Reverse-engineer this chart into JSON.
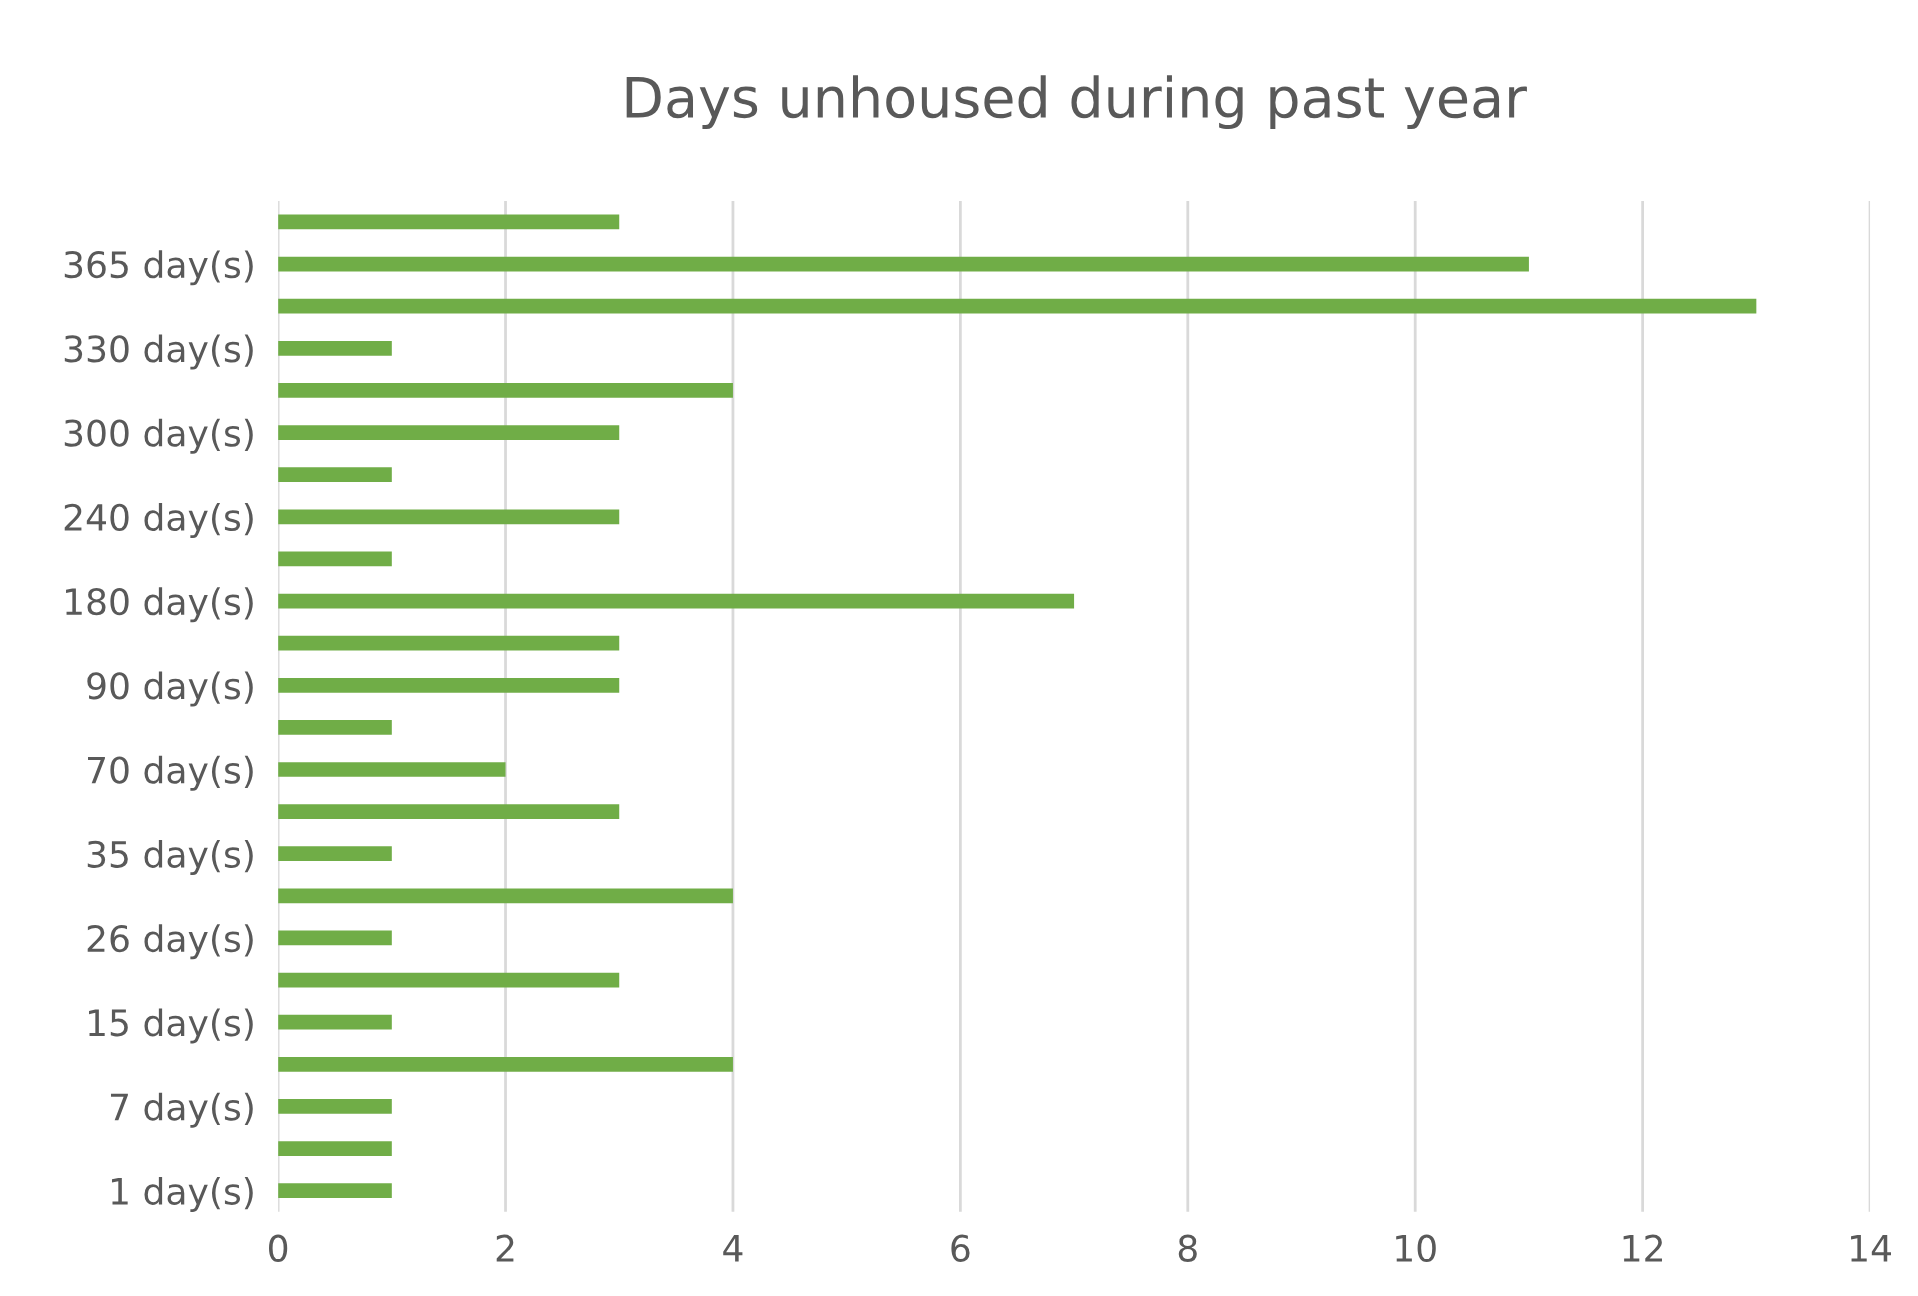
{
  "chart_data": {
    "type": "bar",
    "orientation": "horizontal",
    "title": "Days unhoused during past year",
    "categories": [
      null,
      "365 day(s)",
      null,
      "330 day(s)",
      null,
      "300 day(s)",
      null,
      "240 day(s)",
      null,
      "180 day(s)",
      null,
      "90 day(s)",
      null,
      "70 day(s)",
      null,
      "35 day(s)",
      null,
      "26 day(s)",
      null,
      "15 day(s)",
      null,
      "7 day(s)",
      null,
      "1 day(s)"
    ],
    "values": [
      3,
      11,
      13,
      1,
      4,
      3,
      1,
      3,
      1,
      7,
      3,
      3,
      1,
      2,
      3,
      1,
      4,
      1,
      3,
      1,
      4,
      1,
      1,
      1
    ],
    "color": "#70ad47",
    "xlim": [
      0,
      14
    ],
    "xticks": [
      0,
      2,
      4,
      6,
      8,
      10,
      12,
      14
    ],
    "grid": "x",
    "legend": false
  }
}
